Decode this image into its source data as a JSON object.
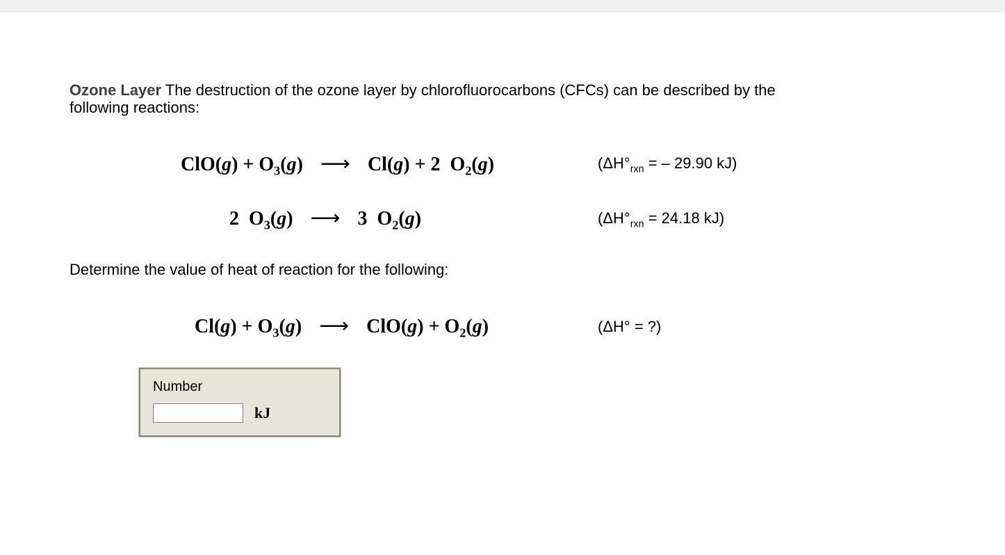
{
  "intro": {
    "lead": "Ozone Layer",
    "text_part1": " The destruction of the ozone layer by chlorofluorocarbons (CFCs) can be described by the",
    "text_part2": "following reactions:"
  },
  "reactions": [
    {
      "lhs_html": "ClO(<span class='paren-i'>g</span>) + O<sub>3</sub>(<span class='paren-i'>g</span>)",
      "arrow": "⟶",
      "rhs_html": "Cl(<span class='paren-i'>g</span>) + 2&nbsp;&nbsp;O<sub>2</sub>(<span class='paren-i'>g</span>)",
      "dh_html": "(ΔH°<sub>rxn</sub> = – 29.90 kJ)"
    },
    {
      "lhs_html": "2&nbsp;&nbsp;O<sub>3</sub>(<span class='paren-i'>g</span>)",
      "arrow": "⟶",
      "rhs_html": "3&nbsp;&nbsp;O<sub>2</sub>(<span class='paren-i'>g</span>)",
      "dh_html": "(ΔH°<sub>rxn</sub> = 24.18 kJ)"
    }
  ],
  "determine_text": "Determine the value of heat of reaction for the following:",
  "target_reaction": {
    "lhs_html": "Cl(<span class='paren-i'>g</span>) + O<sub>3</sub>(<span class='paren-i'>g</span>)",
    "arrow": "⟶",
    "rhs_html": "ClO(<span class='paren-i'>g</span>) + O<sub>2</sub>(<span class='paren-i'>g</span>)",
    "dh_html": "(ΔH° = ?)"
  },
  "answer_box": {
    "label": "Number",
    "input_value": "",
    "unit": "kJ"
  }
}
